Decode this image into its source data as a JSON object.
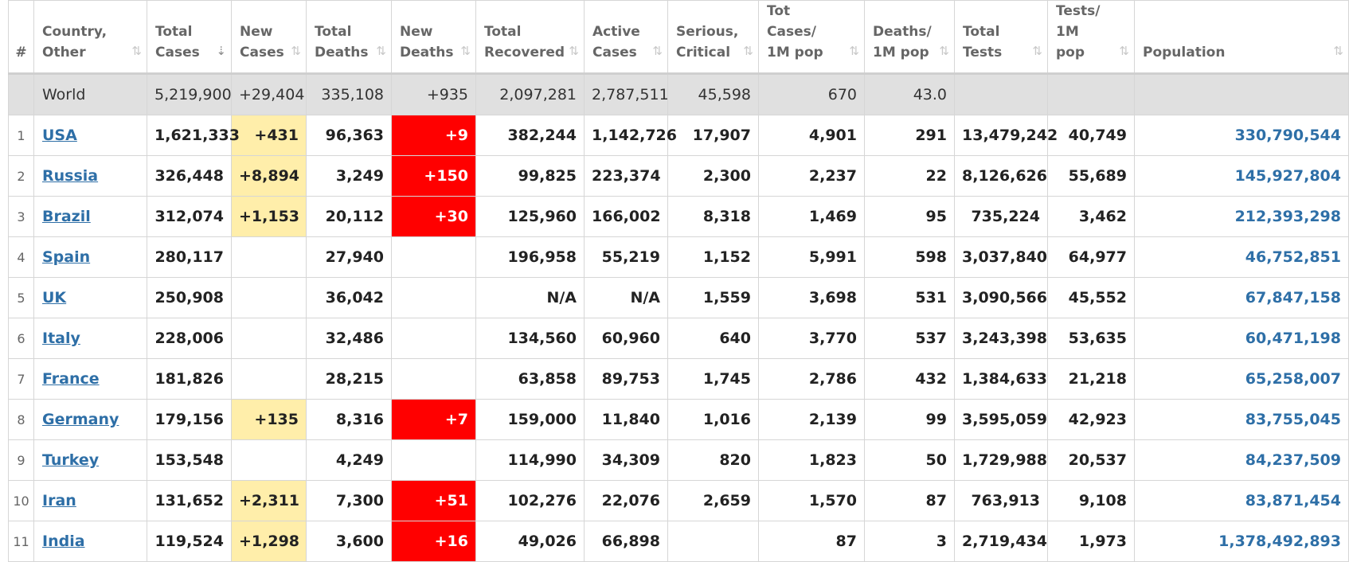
{
  "headers": [
    {
      "label": "#",
      "sortable": false
    },
    {
      "label": "Country, Other",
      "sortable": true
    },
    {
      "label": "Total Cases",
      "sortable": true,
      "active_sort": true
    },
    {
      "label": "New Cases",
      "sortable": true
    },
    {
      "label": "Total Deaths",
      "sortable": true
    },
    {
      "label": "New Deaths",
      "sortable": true
    },
    {
      "label": "Total Recovered",
      "sortable": true
    },
    {
      "label": "Active Cases",
      "sortable": true
    },
    {
      "label": "Serious, Critical",
      "sortable": true
    },
    {
      "label": "Tot Cases/ 1M pop",
      "sortable": true
    },
    {
      "label": "Deaths/ 1M pop",
      "sortable": true
    },
    {
      "label": "Total Tests",
      "sortable": true
    },
    {
      "label": "Tests/ 1M pop",
      "sortable": true
    },
    {
      "label": "Population",
      "sortable": true
    }
  ],
  "sort_icon": "⇅",
  "sort_icon_active": "⇣",
  "world": {
    "name": "World",
    "total_cases": "5,219,900",
    "new_cases": "+29,404",
    "total_deaths": "335,108",
    "new_deaths": "+935",
    "total_recovered": "2,097,281",
    "active_cases": "2,787,511",
    "serious_critical": "45,598",
    "cases_per_1m": "670",
    "deaths_per_1m": "43.0",
    "total_tests": "",
    "tests_per_1m": "",
    "population": ""
  },
  "rows": [
    {
      "rank": "1",
      "name": "USA",
      "total_cases": "1,621,333",
      "new_cases": "+431",
      "total_deaths": "96,363",
      "new_deaths": "+9",
      "total_recovered": "382,244",
      "active_cases": "1,142,726",
      "serious_critical": "17,907",
      "cases_per_1m": "4,901",
      "deaths_per_1m": "291",
      "total_tests": "13,479,242",
      "tests_per_1m": "40,749",
      "population": "330,790,544"
    },
    {
      "rank": "2",
      "name": "Russia",
      "total_cases": "326,448",
      "new_cases": "+8,894",
      "total_deaths": "3,249",
      "new_deaths": "+150",
      "total_recovered": "99,825",
      "active_cases": "223,374",
      "serious_critical": "2,300",
      "cases_per_1m": "2,237",
      "deaths_per_1m": "22",
      "total_tests": "8,126,626",
      "tests_per_1m": "55,689",
      "population": "145,927,804"
    },
    {
      "rank": "3",
      "name": "Brazil",
      "total_cases": "312,074",
      "new_cases": "+1,153",
      "total_deaths": "20,112",
      "new_deaths": "+30",
      "total_recovered": "125,960",
      "active_cases": "166,002",
      "serious_critical": "8,318",
      "cases_per_1m": "1,469",
      "deaths_per_1m": "95",
      "total_tests": "735,224",
      "tests_per_1m": "3,462",
      "population": "212,393,298"
    },
    {
      "rank": "4",
      "name": "Spain",
      "total_cases": "280,117",
      "new_cases": "",
      "total_deaths": "27,940",
      "new_deaths": "",
      "total_recovered": "196,958",
      "active_cases": "55,219",
      "serious_critical": "1,152",
      "cases_per_1m": "5,991",
      "deaths_per_1m": "598",
      "total_tests": "3,037,840",
      "tests_per_1m": "64,977",
      "population": "46,752,851"
    },
    {
      "rank": "5",
      "name": "UK",
      "total_cases": "250,908",
      "new_cases": "",
      "total_deaths": "36,042",
      "new_deaths": "",
      "total_recovered": "N/A",
      "active_cases": "N/A",
      "serious_critical": "1,559",
      "cases_per_1m": "3,698",
      "deaths_per_1m": "531",
      "total_tests": "3,090,566",
      "tests_per_1m": "45,552",
      "population": "67,847,158"
    },
    {
      "rank": "6",
      "name": "Italy",
      "total_cases": "228,006",
      "new_cases": "",
      "total_deaths": "32,486",
      "new_deaths": "",
      "total_recovered": "134,560",
      "active_cases": "60,960",
      "serious_critical": "640",
      "cases_per_1m": "3,770",
      "deaths_per_1m": "537",
      "total_tests": "3,243,398",
      "tests_per_1m": "53,635",
      "population": "60,471,198"
    },
    {
      "rank": "7",
      "name": "France",
      "total_cases": "181,826",
      "new_cases": "",
      "total_deaths": "28,215",
      "new_deaths": "",
      "total_recovered": "63,858",
      "active_cases": "89,753",
      "serious_critical": "1,745",
      "cases_per_1m": "2,786",
      "deaths_per_1m": "432",
      "total_tests": "1,384,633",
      "tests_per_1m": "21,218",
      "population": "65,258,007"
    },
    {
      "rank": "8",
      "name": "Germany",
      "total_cases": "179,156",
      "new_cases": "+135",
      "total_deaths": "8,316",
      "new_deaths": "+7",
      "total_recovered": "159,000",
      "active_cases": "11,840",
      "serious_critical": "1,016",
      "cases_per_1m": "2,139",
      "deaths_per_1m": "99",
      "total_tests": "3,595,059",
      "tests_per_1m": "42,923",
      "population": "83,755,045"
    },
    {
      "rank": "9",
      "name": "Turkey",
      "total_cases": "153,548",
      "new_cases": "",
      "total_deaths": "4,249",
      "new_deaths": "",
      "total_recovered": "114,990",
      "active_cases": "34,309",
      "serious_critical": "820",
      "cases_per_1m": "1,823",
      "deaths_per_1m": "50",
      "total_tests": "1,729,988",
      "tests_per_1m": "20,537",
      "population": "84,237,509"
    },
    {
      "rank": "10",
      "name": "Iran",
      "total_cases": "131,652",
      "new_cases": "+2,311",
      "total_deaths": "7,300",
      "new_deaths": "+51",
      "total_recovered": "102,276",
      "active_cases": "22,076",
      "serious_critical": "2,659",
      "cases_per_1m": "1,570",
      "deaths_per_1m": "87",
      "total_tests": "763,913",
      "tests_per_1m": "9,108",
      "population": "83,871,454"
    },
    {
      "rank": "11",
      "name": "India",
      "total_cases": "119,524",
      "new_cases": "+1,298",
      "total_deaths": "3,600",
      "new_deaths": "+16",
      "total_recovered": "49,026",
      "active_cases": "66,898",
      "serious_critical": "",
      "cases_per_1m": "87",
      "deaths_per_1m": "3",
      "total_tests": "2,719,434",
      "tests_per_1m": "1,973",
      "population": "1,378,492,893"
    }
  ],
  "colors": {
    "new_cases_highlight": "#ffeeaa",
    "new_deaths_highlight": "#ff0000",
    "link": "#2e6fa7",
    "world_row": "#e0e0e0"
  }
}
